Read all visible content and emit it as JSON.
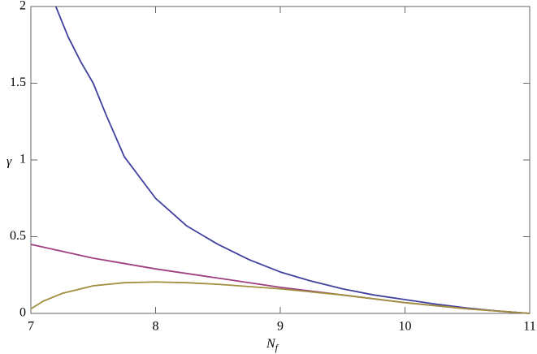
{
  "chart_data": {
    "type": "line",
    "xlabel": {
      "main": "N",
      "sub": "f"
    },
    "ylabel": "γ",
    "xlim": [
      7,
      11
    ],
    "xticks": [
      7,
      8,
      9,
      10,
      11
    ],
    "ylim": [
      0,
      2
    ],
    "yticks": [
      0,
      0.5,
      1,
      1.5,
      2
    ],
    "series": [
      {
        "color": "#40409f",
        "x": [
          7.2,
          7.3,
          7.4,
          7.5,
          7.6,
          7.75,
          8,
          8.25,
          8.5,
          8.75,
          9,
          9.25,
          9.5,
          9.75,
          10,
          10.25,
          10.5,
          10.75,
          11
        ],
        "values": [
          2.0,
          1.8,
          1.64,
          1.5,
          1.3,
          1.02,
          0.75,
          0.57,
          0.45,
          0.35,
          0.27,
          0.21,
          0.16,
          0.12,
          0.09,
          0.06,
          0.035,
          0.015,
          0
        ]
      },
      {
        "color": "#9f3f7f",
        "x": [
          7,
          7.5,
          8,
          8.5,
          9,
          9.5,
          10,
          10.5,
          11
        ],
        "values": [
          0.45,
          0.36,
          0.29,
          0.23,
          0.17,
          0.12,
          0.07,
          0.03,
          0
        ]
      },
      {
        "color": "#9f8f3f",
        "x": [
          7,
          7.1,
          7.25,
          7.5,
          7.75,
          8,
          8.25,
          8.5,
          9,
          9.5,
          10,
          10.5,
          11
        ],
        "values": [
          0.03,
          0.08,
          0.13,
          0.18,
          0.2,
          0.205,
          0.2,
          0.19,
          0.16,
          0.12,
          0.07,
          0.03,
          0
        ]
      }
    ]
  }
}
